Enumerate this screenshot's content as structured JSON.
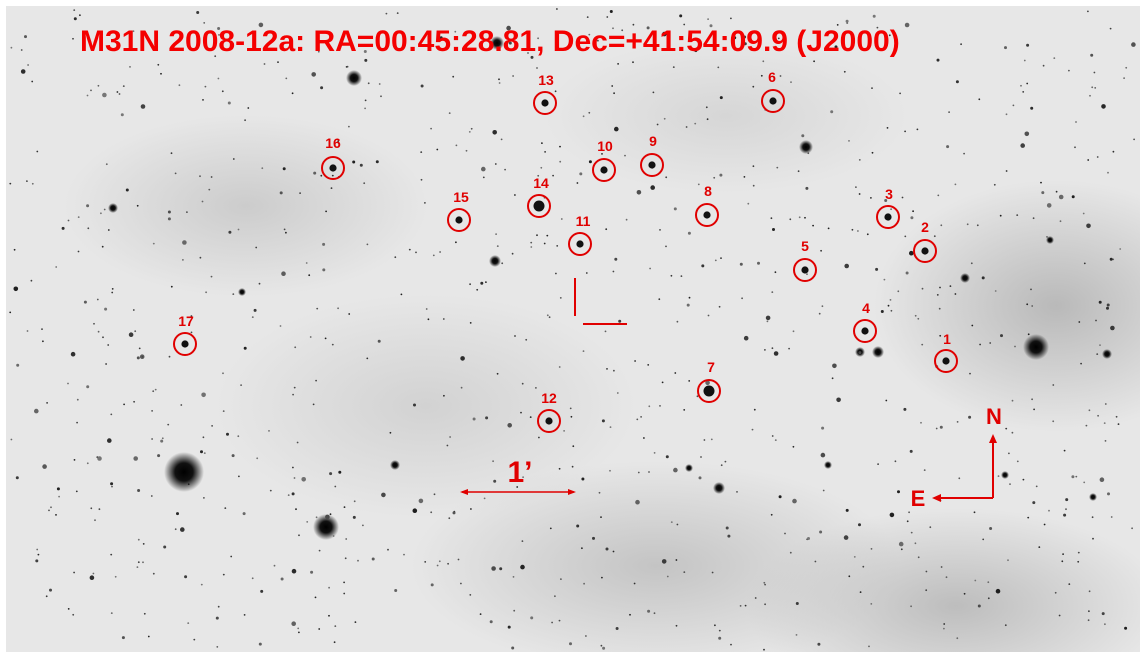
{
  "title": "M31N 2008-12a: RA=00:45:28.81, Dec=+41:54:09.9 (J2000)",
  "marker_color": "#e00000",
  "scale_label": "1’",
  "compass": {
    "north": "N",
    "east": "E"
  },
  "comparison_stars": [
    {
      "label": "1"
    },
    {
      "label": "2"
    },
    {
      "label": "3"
    },
    {
      "label": "4"
    },
    {
      "label": "5"
    },
    {
      "label": "6"
    },
    {
      "label": "7"
    },
    {
      "label": "8"
    },
    {
      "label": "9"
    },
    {
      "label": "10"
    },
    {
      "label": "11"
    },
    {
      "label": "12"
    },
    {
      "label": "13"
    },
    {
      "label": "14"
    },
    {
      "label": "15"
    },
    {
      "label": "16"
    },
    {
      "label": "17"
    }
  ]
}
